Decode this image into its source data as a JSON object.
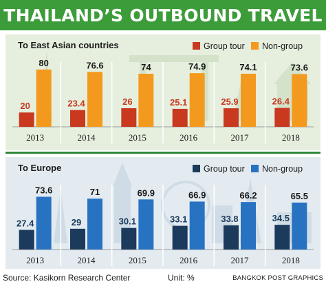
{
  "title": "THAILAND’S OUTBOUND TRAVEL",
  "colors": {
    "title_bg": "#3d9c3a",
    "group_asia": "#c8391f",
    "nongroup_asia": "#f39a1e",
    "group_europe": "#1b3a5c",
    "nongroup_europe": "#2872c2",
    "panel_asia_bg": "#e6efde",
    "panel_europe_bg": "#e3ebf1",
    "divider": "#2d8a3a"
  },
  "chart_data": [
    {
      "type": "bar",
      "title": "To East Asian countries",
      "categories": [
        "2013",
        "2014",
        "2015",
        "2016",
        "2017",
        "2018"
      ],
      "series": [
        {
          "name": "Group tour",
          "values": [
            20,
            23.4,
            26,
            25.1,
            25.9,
            26.4
          ]
        },
        {
          "name": "Non-group",
          "values": [
            80,
            76.6,
            74,
            74.9,
            74.1,
            73.6
          ]
        }
      ],
      "data_labels": [
        [
          "20",
          "23.4",
          "26",
          "25.1",
          "25.9",
          "26.4"
        ],
        [
          "80",
          "76.6",
          "74",
          "74.9",
          "74.1",
          "73.6"
        ]
      ],
      "ylim": [
        0,
        100
      ],
      "grid": false,
      "legend": "top-right"
    },
    {
      "type": "bar",
      "title": "To Europe",
      "categories": [
        "2013",
        "2014",
        "2015",
        "2016",
        "2017",
        "2018"
      ],
      "series": [
        {
          "name": "Group tour",
          "values": [
            27.4,
            29,
            30.1,
            33.1,
            33.8,
            34.5
          ]
        },
        {
          "name": "Non-group",
          "values": [
            73.6,
            71,
            69.9,
            66.9,
            66.2,
            65.5
          ]
        }
      ],
      "data_labels": [
        [
          "27.4",
          "29",
          "30.1",
          "33.1",
          "33.8",
          "34.5"
        ],
        [
          "73.6",
          "71",
          "69.9",
          "66.9",
          "66.2",
          "65.5"
        ]
      ],
      "ylim": [
        0,
        100
      ],
      "grid": false,
      "legend": "top-right"
    }
  ],
  "footer": {
    "source": "Source: Kasikorn Research Center",
    "unit": "Unit: %",
    "credit": "BANGKOK POST GRAPHICS"
  }
}
